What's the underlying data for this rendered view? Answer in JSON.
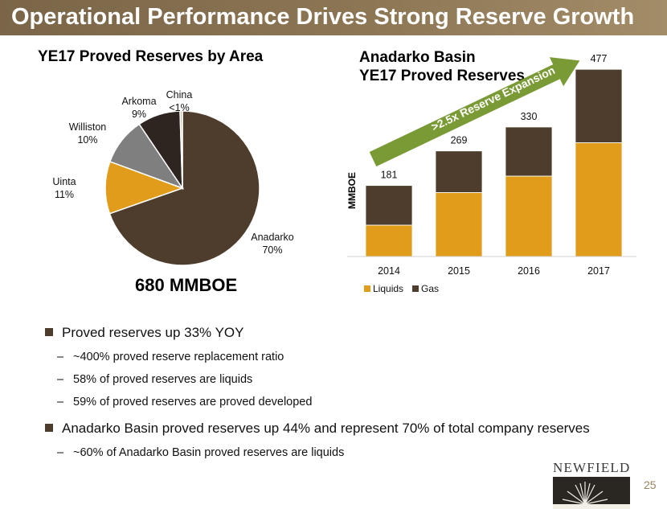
{
  "slide": {
    "title": "Operational Performance Drives Strong Reserve Growth",
    "page_number": "25"
  },
  "chart_data": [
    {
      "type": "pie",
      "title": "YE17 Proved Reserves by Area",
      "total_label": "680 MMBOE",
      "slices": [
        {
          "name": "Anadarko",
          "value": 70,
          "label": "70%",
          "color": "#4e3d2c"
        },
        {
          "name": "Uinta",
          "value": 11,
          "label": "11%",
          "color": "#e09c1a"
        },
        {
          "name": "Williston",
          "value": 10,
          "label": "10%",
          "color": "#7f7f7f"
        },
        {
          "name": "Arkoma",
          "value": 9,
          "label": "9%",
          "color": "#2e2520"
        },
        {
          "name": "China",
          "value": 0.5,
          "label": "<1%",
          "color": "#c8c2a6"
        }
      ]
    },
    {
      "type": "bar",
      "stacked": true,
      "title_line1": "Anadarko Basin",
      "title_line2": "YE17 Proved Reserves",
      "ylabel": "MMBOE",
      "categories": [
        "2014",
        "2015",
        "2016",
        "2017"
      ],
      "series": [
        {
          "name": "Liquids",
          "color": "#e09c1a",
          "values": [
            80,
            163,
            205,
            290
          ]
        },
        {
          "name": "Gas",
          "color": "#4e3d2c",
          "values": [
            101,
            106,
            125,
            187
          ]
        }
      ],
      "totals": [
        "181",
        "269",
        "330",
        "477"
      ],
      "ylim": [
        0,
        500
      ],
      "legend_position": "bottom-left",
      "annotation": ">2.5x Reserve Expansion"
    }
  ],
  "bullets": [
    {
      "level": 1,
      "text": "Proved reserves up 33% YOY"
    },
    {
      "level": 2,
      "text": "~400% proved reserve replacement ratio"
    },
    {
      "level": 2,
      "text": "58% of proved reserves are liquids"
    },
    {
      "level": 2,
      "text": "59% of proved reserves are proved developed"
    },
    {
      "level": 1,
      "text": "Anadarko Basin proved reserves up 44% and represent 70% of total company reserves"
    },
    {
      "level": 2,
      "text": "~60% of Anadarko Basin proved reserves are liquids"
    }
  ],
  "logo": {
    "text": "NEWFIELD"
  },
  "colors": {
    "accent": "#8c7654",
    "brown": "#4e3d2c",
    "gold": "#e09c1a",
    "arrow": "#7a9a35"
  }
}
